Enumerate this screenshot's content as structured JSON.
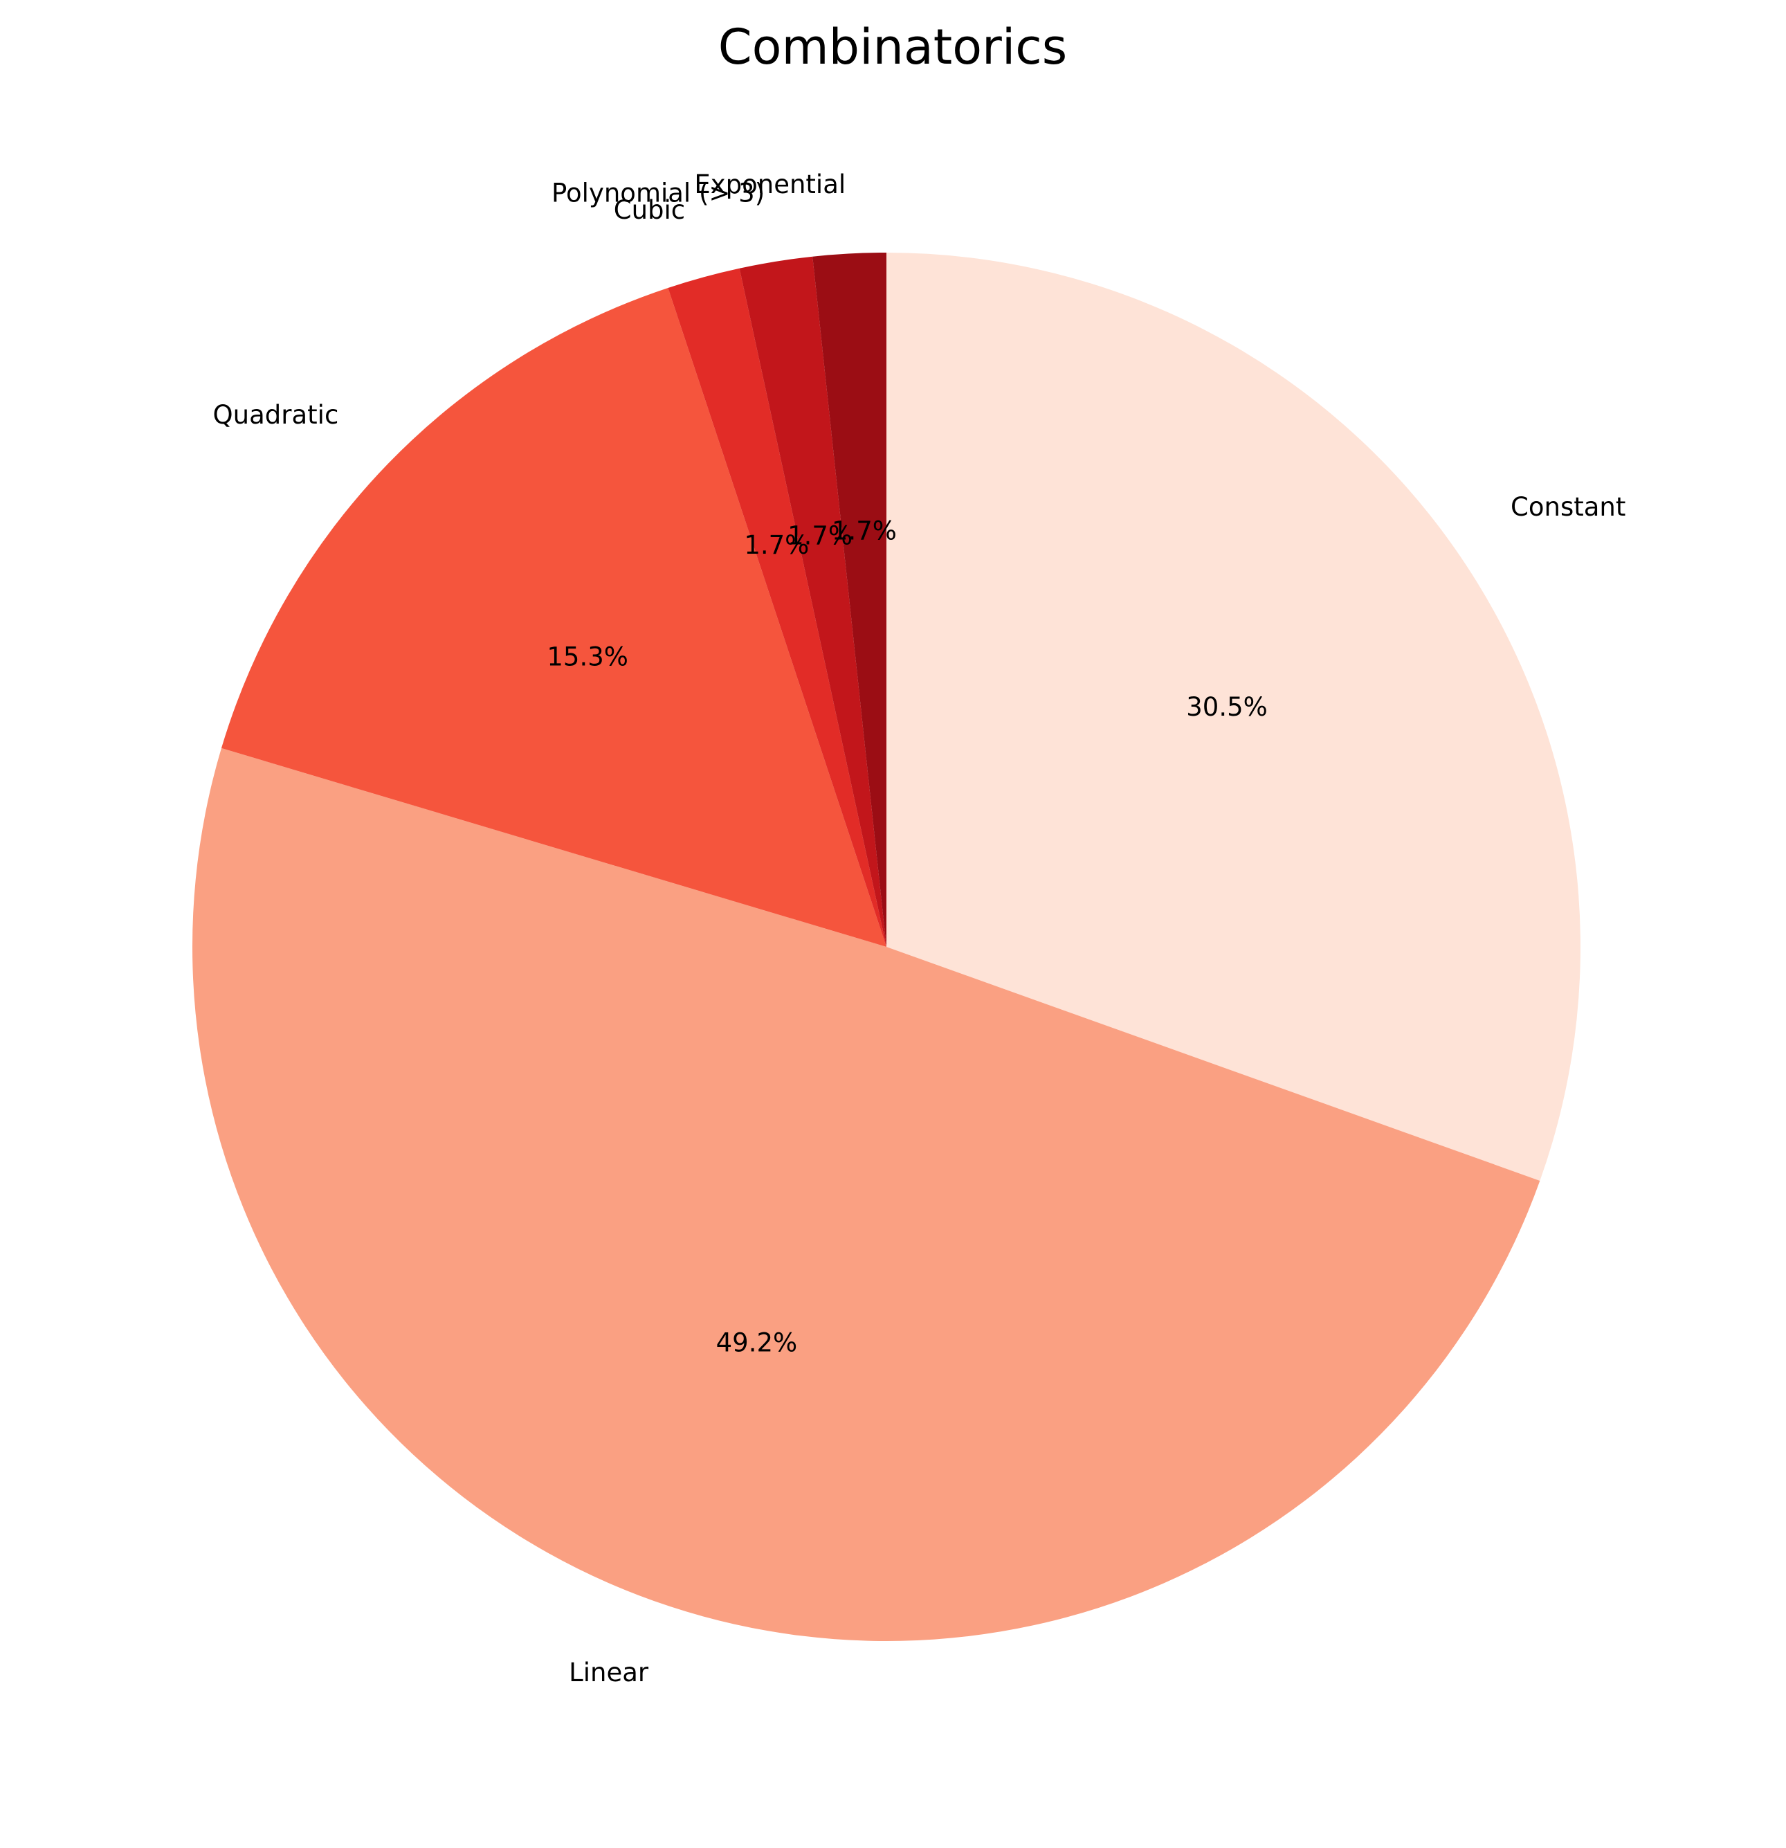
{
  "chart_data": {
    "type": "pie",
    "title": "Combinatorics",
    "categories": [
      "Constant",
      "Linear",
      "Quadratic",
      "Cubic",
      "Polynomial (> 3)",
      "Exponential"
    ],
    "values": [
      30.5,
      49.2,
      15.3,
      1.7,
      1.7,
      1.7
    ],
    "percent_labels": [
      "30.5%",
      "49.2%",
      "15.3%",
      "1.7%",
      "1.7%",
      "1.7%"
    ],
    "colors": [
      "#fee3d7",
      "#faa082",
      "#f5553d",
      "#e22c27",
      "#c2161b",
      "#9b0d14"
    ],
    "start_angle": 90,
    "direction": "clockwise",
    "legend": "none"
  }
}
